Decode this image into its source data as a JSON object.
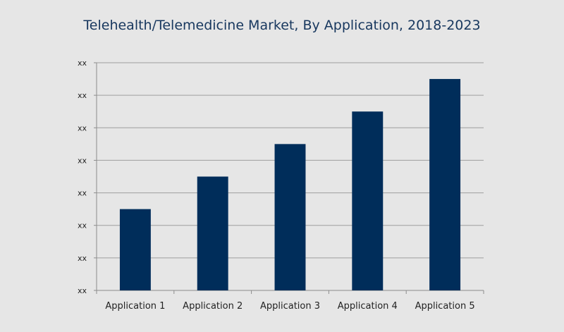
{
  "chart_data": {
    "type": "bar",
    "title": "Telehealth/Telemedicine Market, By Application, 2018-2023",
    "categories": [
      "Application 1",
      "Application 2",
      "Application 3",
      "Application 4",
      "Application 5"
    ],
    "values": [
      2.5,
      3.5,
      4.5,
      5.5,
      6.5
    ],
    "ylim": [
      0,
      7
    ],
    "yticks": [
      0,
      1,
      2,
      3,
      4,
      5,
      6,
      7
    ],
    "ytick_labels": [
      "xx",
      "xx",
      "xx",
      "xx",
      "xx",
      "xx",
      "xx",
      "xx"
    ],
    "xlabel": "",
    "ylabel": "",
    "grid": true,
    "legend": "none",
    "bar_color": "#002d5a",
    "grid_color": "#9e9e9e",
    "axis_color": "#8c8c8c",
    "title_color": "#17375e"
  }
}
